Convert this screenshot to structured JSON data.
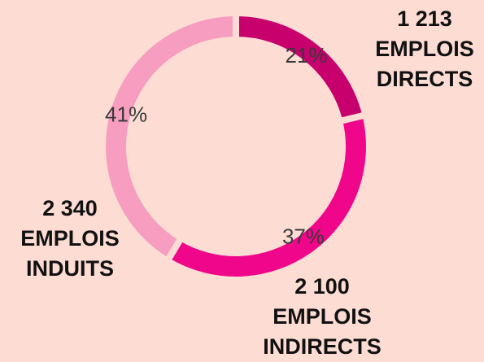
{
  "chart_data": {
    "type": "pie",
    "donut": true,
    "categories": [
      "1 213\nEMPLOIS\nDIRECTS",
      "2 100\nEMPLOIS\nINDIRECTS",
      "2 340\nEMPLOIS\nINDUITS"
    ],
    "values": [
      21,
      37,
      41
    ],
    "value_labels": [
      "21%",
      "37%",
      "41%"
    ],
    "colors": [
      "#c8006e",
      "#f0068a",
      "#f79dbf"
    ]
  }
}
